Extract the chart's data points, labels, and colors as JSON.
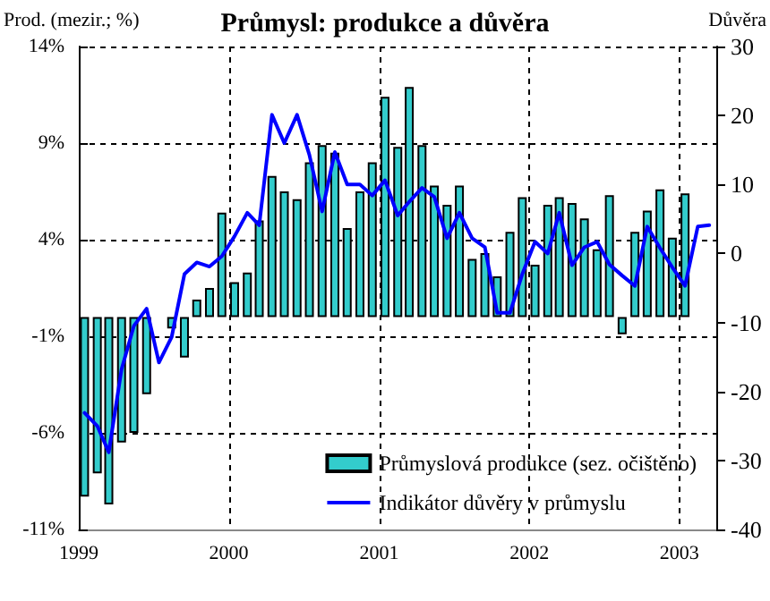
{
  "chart_data": {
    "type": "bar",
    "title": "Průmysl: produkce a důvěra",
    "ylabel": "Prod. (mezir.; %)",
    "y2label": "Důvěra",
    "xlim": [
      "1999-01",
      "2003-04"
    ],
    "xticks": [
      "1999",
      "2000",
      "2001",
      "2002",
      "2003"
    ],
    "ylim": [
      -11,
      14
    ],
    "yticks": [
      {
        "value": -11,
        "label": "-11%"
      },
      {
        "value": -6,
        "label": "-6%"
      },
      {
        "value": -1,
        "label": "-1%"
      },
      {
        "value": 4,
        "label": "4%"
      },
      {
        "value": 9,
        "label": "9%"
      },
      {
        "value": 14,
        "label": "14%"
      }
    ],
    "y2lim": [
      -40,
      30
    ],
    "y2ticks": [
      -40,
      -30,
      -20,
      -10,
      0,
      10,
      20,
      30
    ],
    "grid": true,
    "legend": "bottom right",
    "series": [
      {
        "name": "Průmyslová produkce (sez. očištěno)",
        "color": "#33cccc",
        "x": [
          "1999-01-15",
          "1999-02-15",
          "1999-03-15",
          "1999-04-15",
          "1999-05-15",
          "1999-06-15",
          "1999-07-15",
          "1999-08-15",
          "1999-09-15",
          "1999-10-15",
          "1999-11-15",
          "1999-12-15",
          "2000-01-15",
          "2000-02-15",
          "2000-03-15",
          "2000-04-15",
          "2000-05-15",
          "2000-06-15",
          "2000-07-15",
          "2000-08-15",
          "2000-09-15",
          "2000-10-15",
          "2000-11-15",
          "2000-12-15",
          "2001-01-15",
          "2001-02-15",
          "2001-03-15",
          "2001-04-15",
          "2001-05-15",
          "2001-06-15",
          "2001-07-15",
          "2001-08-15",
          "2001-09-15",
          "2001-10-15",
          "2001-11-15",
          "2001-12-15",
          "2002-01-15",
          "2002-02-15",
          "2002-03-15",
          "2002-04-15",
          "2002-05-15",
          "2002-06-15",
          "2002-07-15",
          "2002-08-15",
          "2002-09-15",
          "2002-10-15",
          "2002-11-15",
          "2002-12-15",
          "2003-01-15"
        ],
        "values": [
          -9.3,
          -8.1,
          -9.7,
          -6.5,
          -6.0,
          -4.0,
          null,
          -0.6,
          -2.1,
          0.9,
          1.5,
          5.4,
          1.8,
          2.3,
          5.0,
          7.3,
          6.5,
          6.1,
          8.0,
          8.9,
          8.5,
          4.6,
          6.5,
          8.0,
          11.4,
          8.8,
          11.9,
          8.9,
          6.8,
          5.8,
          6.8,
          3.0,
          3.3,
          2.1,
          4.4,
          6.2,
          2.7,
          5.8,
          6.2,
          5.9,
          5.1,
          3.5,
          6.3,
          -0.9,
          4.4,
          5.5,
          6.6,
          4.1,
          6.4
        ]
      },
      {
        "name": "Indikátor důvěry v průmyslu",
        "type": "line",
        "axis": "y2",
        "color": "#0000ff",
        "x": [
          "1999-01-15",
          "1999-02-15",
          "1999-03-15",
          "1999-04-15",
          "1999-05-15",
          "1999-06-15",
          "1999-07-15",
          "1999-08-15",
          "1999-09-15",
          "1999-10-15",
          "1999-11-15",
          "1999-12-15",
          "2000-01-15",
          "2000-02-15",
          "2000-03-15",
          "2000-04-15",
          "2000-05-15",
          "2000-06-15",
          "2000-07-15",
          "2000-08-15",
          "2000-09-15",
          "2000-10-15",
          "2000-11-15",
          "2000-12-15",
          "2001-01-15",
          "2001-02-15",
          "2001-03-15",
          "2001-04-15",
          "2001-05-15",
          "2001-06-15",
          "2001-07-15",
          "2001-08-15",
          "2001-09-15",
          "2001-10-15",
          "2001-11-15",
          "2001-12-15",
          "2002-01-15",
          "2002-02-15",
          "2002-03-15",
          "2002-04-15",
          "2002-05-15",
          "2002-06-15",
          "2002-07-15",
          "2002-08-15",
          "2002-09-15",
          "2002-10-15",
          "2002-11-15",
          "2002-12-15",
          "2003-01-15",
          "2003-02-15",
          "2003-03-15"
        ],
        "values": [
          -23.1,
          -25.0,
          -28.8,
          -16.8,
          -10.5,
          -8.0,
          -15.8,
          -12.1,
          -3.0,
          -1.3,
          -1.9,
          -0.4,
          2.5,
          5.9,
          4.1,
          20.1,
          16.0,
          20.1,
          14.3,
          6.1,
          14.7,
          10.0,
          10.0,
          8.4,
          10.6,
          5.5,
          7.5,
          9.5,
          8.2,
          2.2,
          5.9,
          2.2,
          0.9,
          -8.6,
          -8.6,
          -3,
          1.7,
          0,
          5.9,
          -1.7,
          0.9,
          1.7,
          -1.6,
          -3.2,
          -4.7,
          3.9,
          0.8,
          -2,
          -4.7,
          3.9,
          4.1
        ]
      }
    ]
  }
}
